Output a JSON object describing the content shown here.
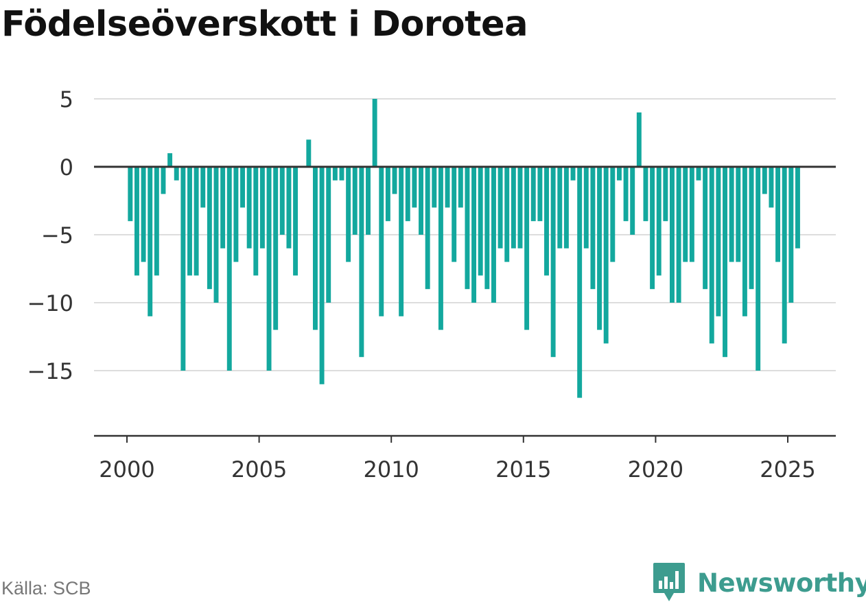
{
  "title": "Födelseöverskott i Dorotea",
  "source": "Källa: SCB",
  "brand": {
    "name": "Newsworthy",
    "icon": "newsworthy-logo-icon",
    "color": "#3d9c8f"
  },
  "colors": {
    "bar": "#13a89e",
    "grid": "#dddddd",
    "zero_line": "#333333",
    "axis": "#333333",
    "text": "#333333"
  },
  "chart_data": {
    "type": "bar",
    "frequency": "quarterly",
    "x_start": "2000 Q1",
    "x_end": "2025 Q2",
    "xlim": [
      1999.75,
      2027.85
    ],
    "ylim": [
      -19.5,
      5.4
    ],
    "x_ticks": [
      2000,
      2005,
      2010,
      2015,
      2020,
      2025
    ],
    "y_ticks": [
      5,
      0,
      -5,
      -10,
      -15
    ],
    "y_tick_labels": [
      "5",
      "0",
      "−5",
      "−10",
      "−15"
    ],
    "grid": "horizontal",
    "legend": "none",
    "values": [
      -4,
      -8,
      -7,
      -11,
      -8,
      -2,
      1,
      -1,
      -15,
      -8,
      -8,
      -3,
      -9,
      -10,
      -6,
      -15,
      -7,
      -3,
      -6,
      -8,
      -6,
      -15,
      -12,
      -5,
      -6,
      -8,
      0,
      2,
      -12,
      -16,
      -10,
      -1,
      -1,
      -7,
      -5,
      -14,
      -5,
      5,
      -11,
      -4,
      -2,
      -11,
      -4,
      -3,
      -5,
      -9,
      -3,
      -12,
      -3,
      -7,
      -3,
      -9,
      -10,
      -8,
      -9,
      -10,
      -6,
      -7,
      -6,
      -6,
      -12,
      -4,
      -4,
      -8,
      -14,
      -6,
      -6,
      -1,
      -17,
      -6,
      -9,
      -12,
      -13,
      -7,
      -1,
      -4,
      -5,
      4,
      -4,
      -9,
      -8,
      -4,
      -10,
      -10,
      -7,
      -7,
      -1,
      -9,
      -13,
      -11,
      -14,
      -7,
      -7,
      -11,
      -9,
      -15,
      -2,
      -3,
      -7,
      -13,
      -10,
      -6
    ]
  }
}
